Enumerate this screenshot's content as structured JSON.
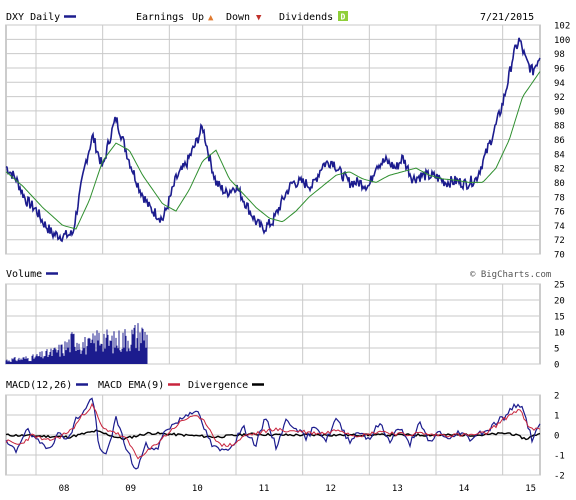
{
  "header": {
    "symbol_label": "DXY Daily",
    "earnings_label": "Earnings",
    "up_label": "Up",
    "down_label": "Down",
    "dividends_label": "Dividends",
    "date": "7/21/2015",
    "up_icon": "triangle-up-icon",
    "down_icon": "triangle-down-icon",
    "dividend_icon": "dividend-d-icon",
    "dividend_glyph": "D",
    "up_glyph": "▲",
    "down_glyph": "▼"
  },
  "volume_panel": {
    "label": "Volume",
    "credit": "© BigCharts.com"
  },
  "macd_panel": {
    "label": "MACD(12,26)",
    "ema_label": "MACD EMA(9)",
    "divergence_label": "Divergence"
  },
  "colors": {
    "price": "#1c1c8e",
    "moving_average": "#2f8f2f",
    "volume": "#1c1c8e",
    "macd": "#1c1c8e",
    "macd_ema": "#c8243c",
    "divergence": "#000000",
    "grid": "#c9c9c9",
    "up_marker": "#e07a30",
    "down_marker": "#c0302a",
    "dividend_marker": "#8fcf3a"
  },
  "chart_data": [
    {
      "type": "line",
      "title": "DXY Daily",
      "x_ticks": [
        "08",
        "09",
        "10",
        "11",
        "12",
        "13",
        "14",
        "15"
      ],
      "y_ticks": [
        70,
        72,
        74,
        76,
        78,
        80,
        82,
        84,
        86,
        88,
        90,
        92,
        94,
        96,
        98,
        100,
        102
      ],
      "ylim": [
        70,
        102
      ],
      "xlim": [
        2007.55,
        2015.56
      ],
      "grid": true,
      "series": [
        {
          "x": [
            2007.55,
            2007.7,
            2007.85,
            2008.0,
            2008.1,
            2008.25,
            2008.4,
            2008.55,
            2008.62,
            2008.75,
            2008.85,
            2008.9,
            2009.0,
            2009.1,
            2009.2,
            2009.4,
            2009.55,
            2009.7,
            2009.9,
            2010.0,
            2010.1,
            2010.25,
            2010.4,
            2010.5,
            2010.6,
            2010.7,
            2010.85,
            2011.0,
            2011.15,
            2011.3,
            2011.4,
            2011.55,
            2011.65,
            2011.75,
            2011.85,
            2012.0,
            2012.15,
            2012.3,
            2012.45,
            2012.55,
            2012.7,
            2012.85,
            2013.0,
            2013.1,
            2013.25,
            2013.4,
            2013.5,
            2013.65,
            2013.8,
            2014.0,
            2014.15,
            2014.3,
            2014.45,
            2014.6,
            2014.75,
            2014.9,
            2015.0,
            2015.1,
            2015.15,
            2015.25,
            2015.35,
            2015.45,
            2015.56
          ],
          "values": [
            82.2,
            80.5,
            77.5,
            76.2,
            74.5,
            72.8,
            72.5,
            72.8,
            76.5,
            83.0,
            86.5,
            85.0,
            82.0,
            86.0,
            89.0,
            83.0,
            79.2,
            76.5,
            74.8,
            77.5,
            80.5,
            82.5,
            85.5,
            87.8,
            83.5,
            80.0,
            78.5,
            79.5,
            77.0,
            74.5,
            73.5,
            74.5,
            76.5,
            78.5,
            80.0,
            80.0,
            79.5,
            82.5,
            83.0,
            81.5,
            80.0,
            80.0,
            79.5,
            82.5,
            83.0,
            82.0,
            83.5,
            80.5,
            81.0,
            80.8,
            80.0,
            80.2,
            79.8,
            80.5,
            84.0,
            88.0,
            91.0,
            95.0,
            97.5,
            100.0,
            97.0,
            95.5,
            97.8
          ]
        },
        {
          "x": [
            2007.55,
            2007.8,
            2008.1,
            2008.4,
            2008.6,
            2008.8,
            2009.0,
            2009.2,
            2009.4,
            2009.6,
            2009.9,
            2010.1,
            2010.3,
            2010.5,
            2010.7,
            2010.9,
            2011.1,
            2011.3,
            2011.5,
            2011.7,
            2011.9,
            2012.1,
            2012.3,
            2012.5,
            2012.7,
            2012.9,
            2013.1,
            2013.3,
            2013.5,
            2013.7,
            2013.9,
            2014.1,
            2014.3,
            2014.5,
            2014.7,
            2014.9,
            2015.1,
            2015.3,
            2015.56
          ],
          "values": [
            81.5,
            79.5,
            76.5,
            74.0,
            73.5,
            77.5,
            83.0,
            85.5,
            84.5,
            81.0,
            77.0,
            76.0,
            79.0,
            83.0,
            84.5,
            80.5,
            78.5,
            76.5,
            75.0,
            74.5,
            76.0,
            78.0,
            79.5,
            81.0,
            81.5,
            80.5,
            80.0,
            81.0,
            81.5,
            82.0,
            81.0,
            80.5,
            80.3,
            80.0,
            80.0,
            82.0,
            86.0,
            92.0,
            95.5
          ]
        }
      ]
    },
    {
      "type": "bar",
      "title": "Volume",
      "y_ticks": [
        0,
        5,
        10,
        15,
        20,
        25
      ],
      "ylim": [
        0,
        25
      ],
      "grid": true,
      "x": [
        2007.55,
        2007.75,
        2007.95,
        2008.1,
        2008.25,
        2008.4,
        2008.5,
        2008.6,
        2008.7,
        2008.8,
        2008.9,
        2009.0,
        2009.1,
        2009.2,
        2009.3,
        2009.4,
        2009.5,
        2009.6,
        2009.67
      ],
      "values": [
        1.5,
        2.0,
        2.5,
        3.5,
        4.5,
        6.0,
        8.0,
        10.5,
        8.0,
        7.0,
        9.5,
        11.0,
        8.5,
        9.0,
        10.0,
        10.5,
        11.5,
        12.0,
        10.5
      ]
    },
    {
      "type": "line",
      "title": "MACD(12,26)",
      "y_ticks": [
        -2,
        -1,
        0,
        1,
        2
      ],
      "ylim": [
        -2,
        2
      ],
      "grid": true,
      "series": [
        {
          "name": "MACD(12,26)",
          "x": [
            2007.55,
            2007.7,
            2007.85,
            2008.0,
            2008.2,
            2008.35,
            2008.5,
            2008.6,
            2008.75,
            2008.85,
            2008.95,
            2009.05,
            2009.2,
            2009.35,
            2009.5,
            2009.65,
            2009.8,
            2009.95,
            2010.1,
            2010.25,
            2010.4,
            2010.5,
            2010.65,
            2010.8,
            2010.95,
            2011.1,
            2011.3,
            2011.45,
            2011.6,
            2011.75,
            2011.9,
            2012.05,
            2012.2,
            2012.35,
            2012.5,
            2012.7,
            2012.85,
            2013.0,
            2013.15,
            2013.3,
            2013.45,
            2013.6,
            2013.75,
            2013.9,
            2014.05,
            2014.2,
            2014.35,
            2014.5,
            2014.65,
            2014.8,
            2014.95,
            2015.05,
            2015.15,
            2015.25,
            2015.35,
            2015.45,
            2015.56
          ],
          "values": [
            -0.4,
            -0.8,
            0.3,
            -0.3,
            -0.6,
            0.1,
            -0.2,
            0.8,
            1.3,
            2.0,
            -0.8,
            -1.0,
            0.8,
            -0.6,
            -1.8,
            -0.5,
            -0.8,
            0.3,
            0.6,
            1.0,
            1.3,
            0.5,
            -0.6,
            -0.8,
            -0.5,
            0.4,
            -0.5,
            0.9,
            -0.6,
            0.7,
            0.4,
            -0.2,
            0.5,
            -0.3,
            0.8,
            -0.3,
            0.2,
            -0.2,
            0.6,
            -0.3,
            0.4,
            -0.5,
            0.6,
            -0.4,
            0.2,
            -0.3,
            0.2,
            -0.2,
            0.1,
            0.3,
            0.8,
            0.9,
            1.4,
            1.6,
            0.8,
            -0.3,
            0.6
          ]
        },
        {
          "name": "MACD EMA(9)",
          "x": [
            2007.55,
            2007.75,
            2007.95,
            2008.15,
            2008.35,
            2008.55,
            2008.7,
            2008.85,
            2009.0,
            2009.15,
            2009.35,
            2009.55,
            2009.75,
            2009.95,
            2010.15,
            2010.35,
            2010.55,
            2010.75,
            2010.95,
            2011.15,
            2011.35,
            2011.55,
            2011.75,
            2011.95,
            2012.15,
            2012.35,
            2012.55,
            2012.75,
            2012.95,
            2013.15,
            2013.35,
            2013.55,
            2013.75,
            2013.95,
            2014.15,
            2014.35,
            2014.55,
            2014.75,
            2014.95,
            2015.1,
            2015.25,
            2015.4,
            2015.56
          ],
          "values": [
            -0.3,
            -0.5,
            0.0,
            -0.3,
            -0.1,
            0.3,
            1.0,
            1.5,
            0.3,
            0.2,
            -0.2,
            -1.2,
            -0.6,
            0.0,
            0.6,
            1.0,
            0.6,
            -0.5,
            -0.5,
            0.0,
            0.1,
            0.3,
            0.2,
            0.2,
            0.1,
            0.1,
            0.3,
            0.0,
            0.0,
            0.2,
            0.1,
            0.0,
            0.1,
            0.0,
            0.0,
            0.0,
            0.0,
            0.1,
            0.6,
            1.0,
            1.3,
            0.3,
            0.3
          ]
        },
        {
          "name": "Divergence",
          "x": [
            2007.55,
            2008.5,
            2008.9,
            2009.3,
            2009.7,
            2010.2,
            2010.7,
            2011.2,
            2011.7,
            2012.2,
            2012.7,
            2013.2,
            2013.7,
            2014.2,
            2014.7,
            2015.1,
            2015.35,
            2015.56
          ],
          "values": [
            0.0,
            -0.1,
            0.2,
            -0.2,
            0.1,
            0.0,
            -0.1,
            0.05,
            0.0,
            0.0,
            0.0,
            0.0,
            0.0,
            0.0,
            0.0,
            0.1,
            -0.2,
            0.1
          ]
        }
      ]
    }
  ]
}
